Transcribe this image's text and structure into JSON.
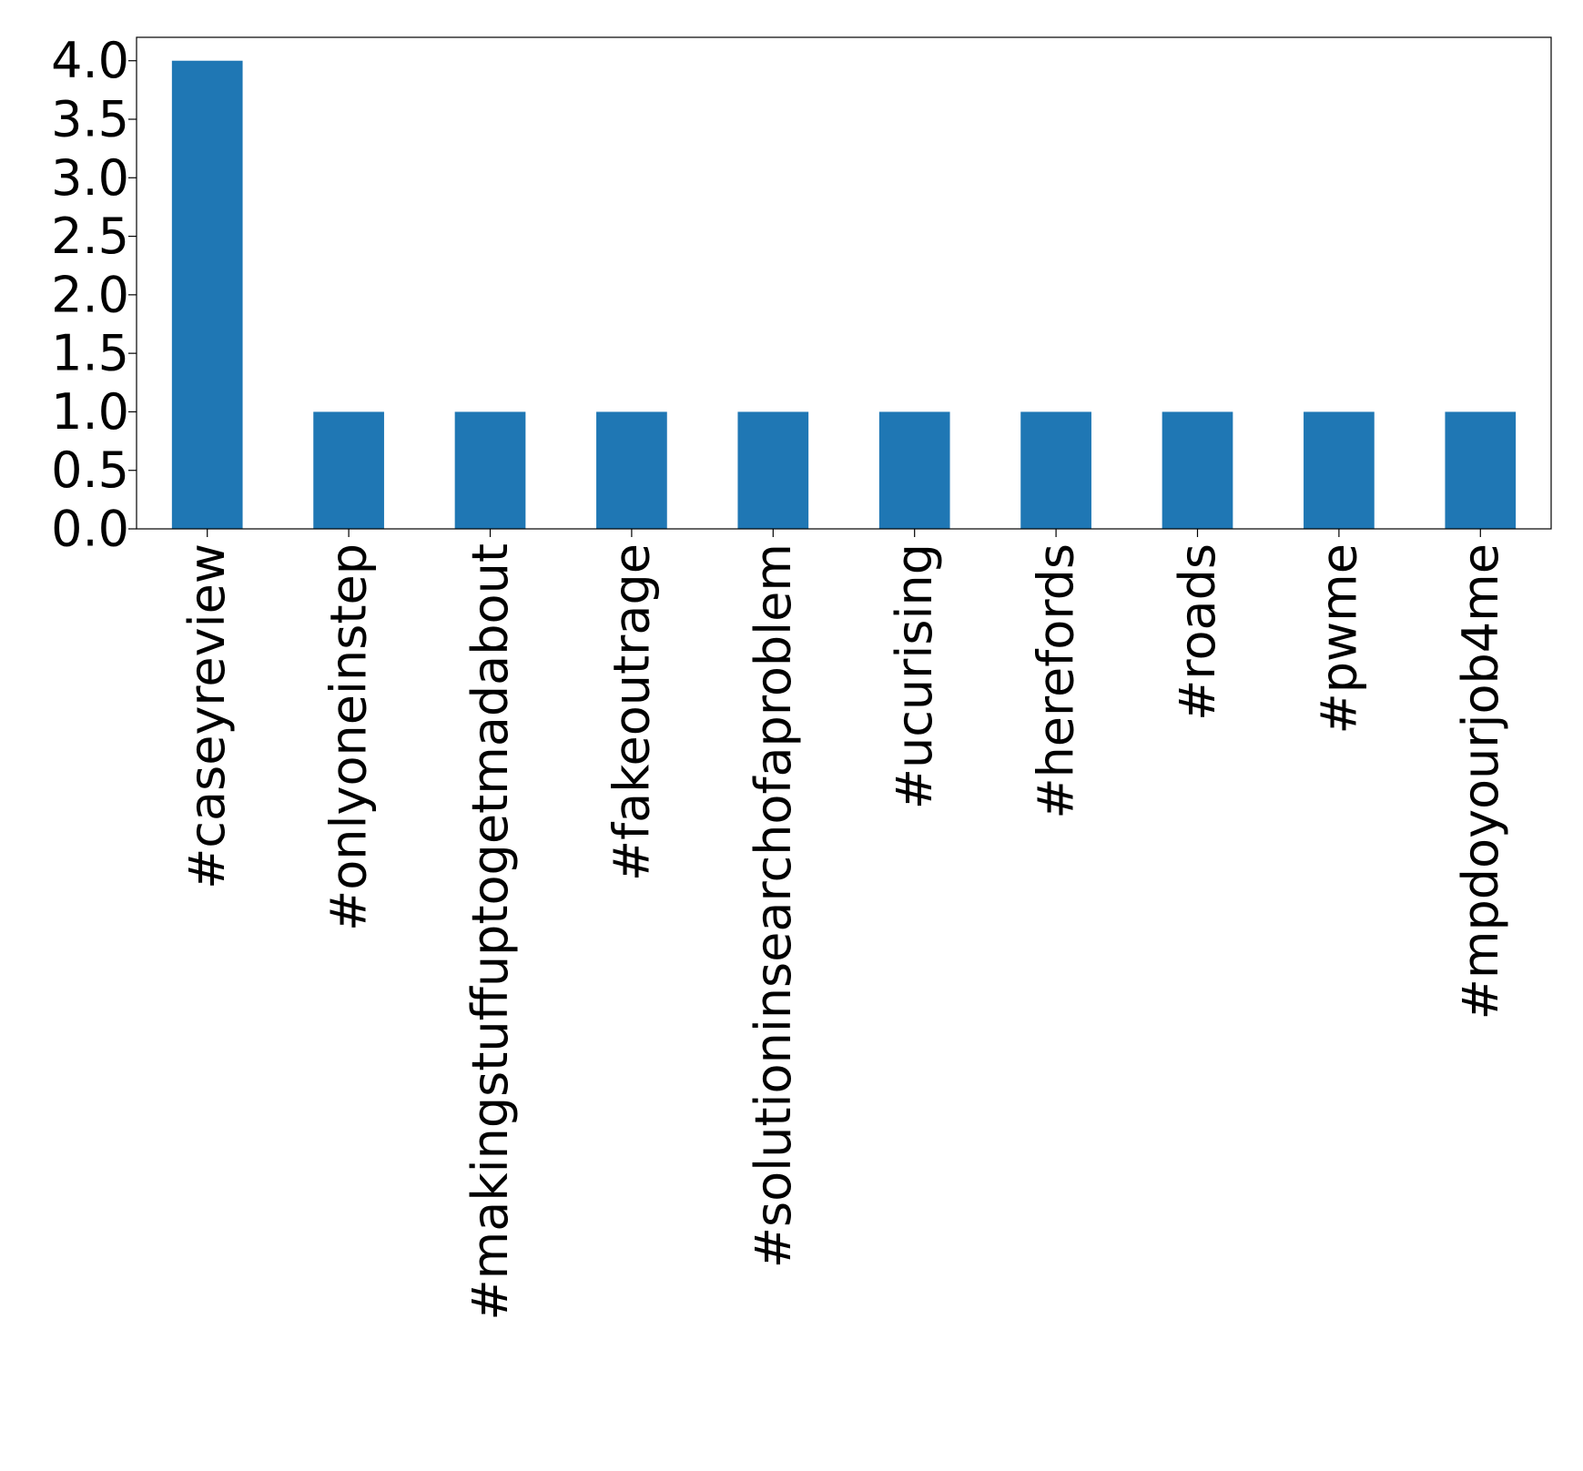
{
  "chart_data": {
    "type": "bar",
    "categories": [
      "#caseyreview",
      "#onlyoneinstep",
      "#makingstuffuptogetmadabout",
      "#fakeoutrage",
      "#solutioninsearchofaproblem",
      "#ucurising",
      "#herefords",
      "#roads",
      "#pwme",
      "#mpdoyourjob4me"
    ],
    "values": [
      4,
      1,
      1,
      1,
      1,
      1,
      1,
      1,
      1,
      1
    ],
    "yticks": [
      "0.0",
      "0.5",
      "1.0",
      "1.5",
      "2.0",
      "2.5",
      "3.0",
      "3.5",
      "4.0"
    ],
    "ylim": [
      0,
      4.2
    ],
    "title": "",
    "xlabel": "",
    "ylabel": "",
    "bar_color": "#1f77b4",
    "grid": false,
    "legend": "none"
  }
}
